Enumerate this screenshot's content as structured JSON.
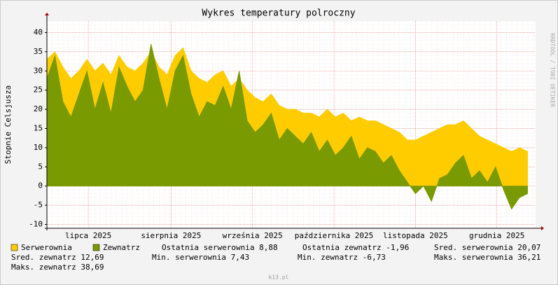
{
  "chart_data": {
    "type": "area",
    "title": "Wykres temperatury polroczny",
    "y_label": "Stopnie Celsjusza",
    "watermark": "RRDTOOL / TOBI OETIKER",
    "footer": "k13.pl",
    "x": [
      0,
      3,
      6,
      9,
      12,
      15,
      18,
      21,
      24,
      27,
      30,
      33,
      36,
      39,
      42,
      45,
      48,
      51,
      54,
      57,
      60,
      63,
      66,
      69,
      72,
      75,
      78,
      81,
      84,
      87,
      90,
      93,
      96,
      99,
      102,
      105,
      108,
      111,
      114,
      117,
      120,
      123,
      126,
      129,
      132,
      135,
      138,
      141,
      144,
      147,
      150,
      153,
      156,
      159,
      162,
      165,
      168,
      171,
      174,
      177,
      180
    ],
    "xlim": [
      0,
      183
    ],
    "xticks": [
      {
        "value": 15.5,
        "label": "lipca 2025"
      },
      {
        "value": 46.5,
        "label": "sierpnia 2025"
      },
      {
        "value": 77,
        "label": "września 2025"
      },
      {
        "value": 107.5,
        "label": "października 2025"
      },
      {
        "value": 138,
        "label": "listopada 2025"
      },
      {
        "value": 168.5,
        "label": "grudnia 2025"
      }
    ],
    "ylim": [
      -11,
      43
    ],
    "yticks": [
      -10,
      -5,
      0,
      5,
      10,
      15,
      20,
      25,
      30,
      35,
      40
    ],
    "grid": true,
    "series": [
      {
        "name": "Serwerownia",
        "color": "#ffcc00",
        "values": [
          33,
          35,
          31,
          28,
          30,
          33,
          30,
          32,
          29,
          34,
          31,
          30,
          32,
          35,
          31,
          29,
          34,
          36,
          30,
          28,
          27,
          29,
          30,
          26,
          28,
          25,
          23,
          22,
          24,
          21,
          20,
          20,
          19,
          19,
          18,
          20,
          18,
          19,
          17,
          18,
          17,
          17,
          16,
          15,
          14,
          12,
          12,
          13,
          14,
          15,
          16,
          16,
          17,
          15,
          13,
          12,
          11,
          10,
          9,
          10,
          9
        ]
      },
      {
        "name": "Zewnatrz",
        "color": "#7a9a01",
        "values": [
          28,
          34,
          22,
          18,
          24,
          30,
          20,
          27,
          19,
          31,
          26,
          22,
          25,
          37,
          28,
          20,
          30,
          34,
          24,
          18,
          22,
          21,
          26,
          20,
          30,
          17,
          14,
          16,
          19,
          12,
          15,
          13,
          11,
          14,
          9,
          12,
          8,
          10,
          13,
          7,
          10,
          9,
          6,
          8,
          4,
          1,
          -2,
          0,
          -4,
          2,
          3,
          6,
          8,
          2,
          4,
          1,
          5,
          -1,
          -6,
          -3,
          -2
        ]
      }
    ],
    "legend_stats": [
      "Ostatnia serwerownia 8,88",
      "Ostatnia zewnatrz -1,96",
      "Sred. serwerownia 20,07",
      "Sred. zewnatrz 12,69",
      "Min. serwerownia 7,43",
      "Min. zewnatrz -6,73",
      "Maks. serwerownia 36,21",
      "Maks. zewnatrz 38,69"
    ]
  }
}
